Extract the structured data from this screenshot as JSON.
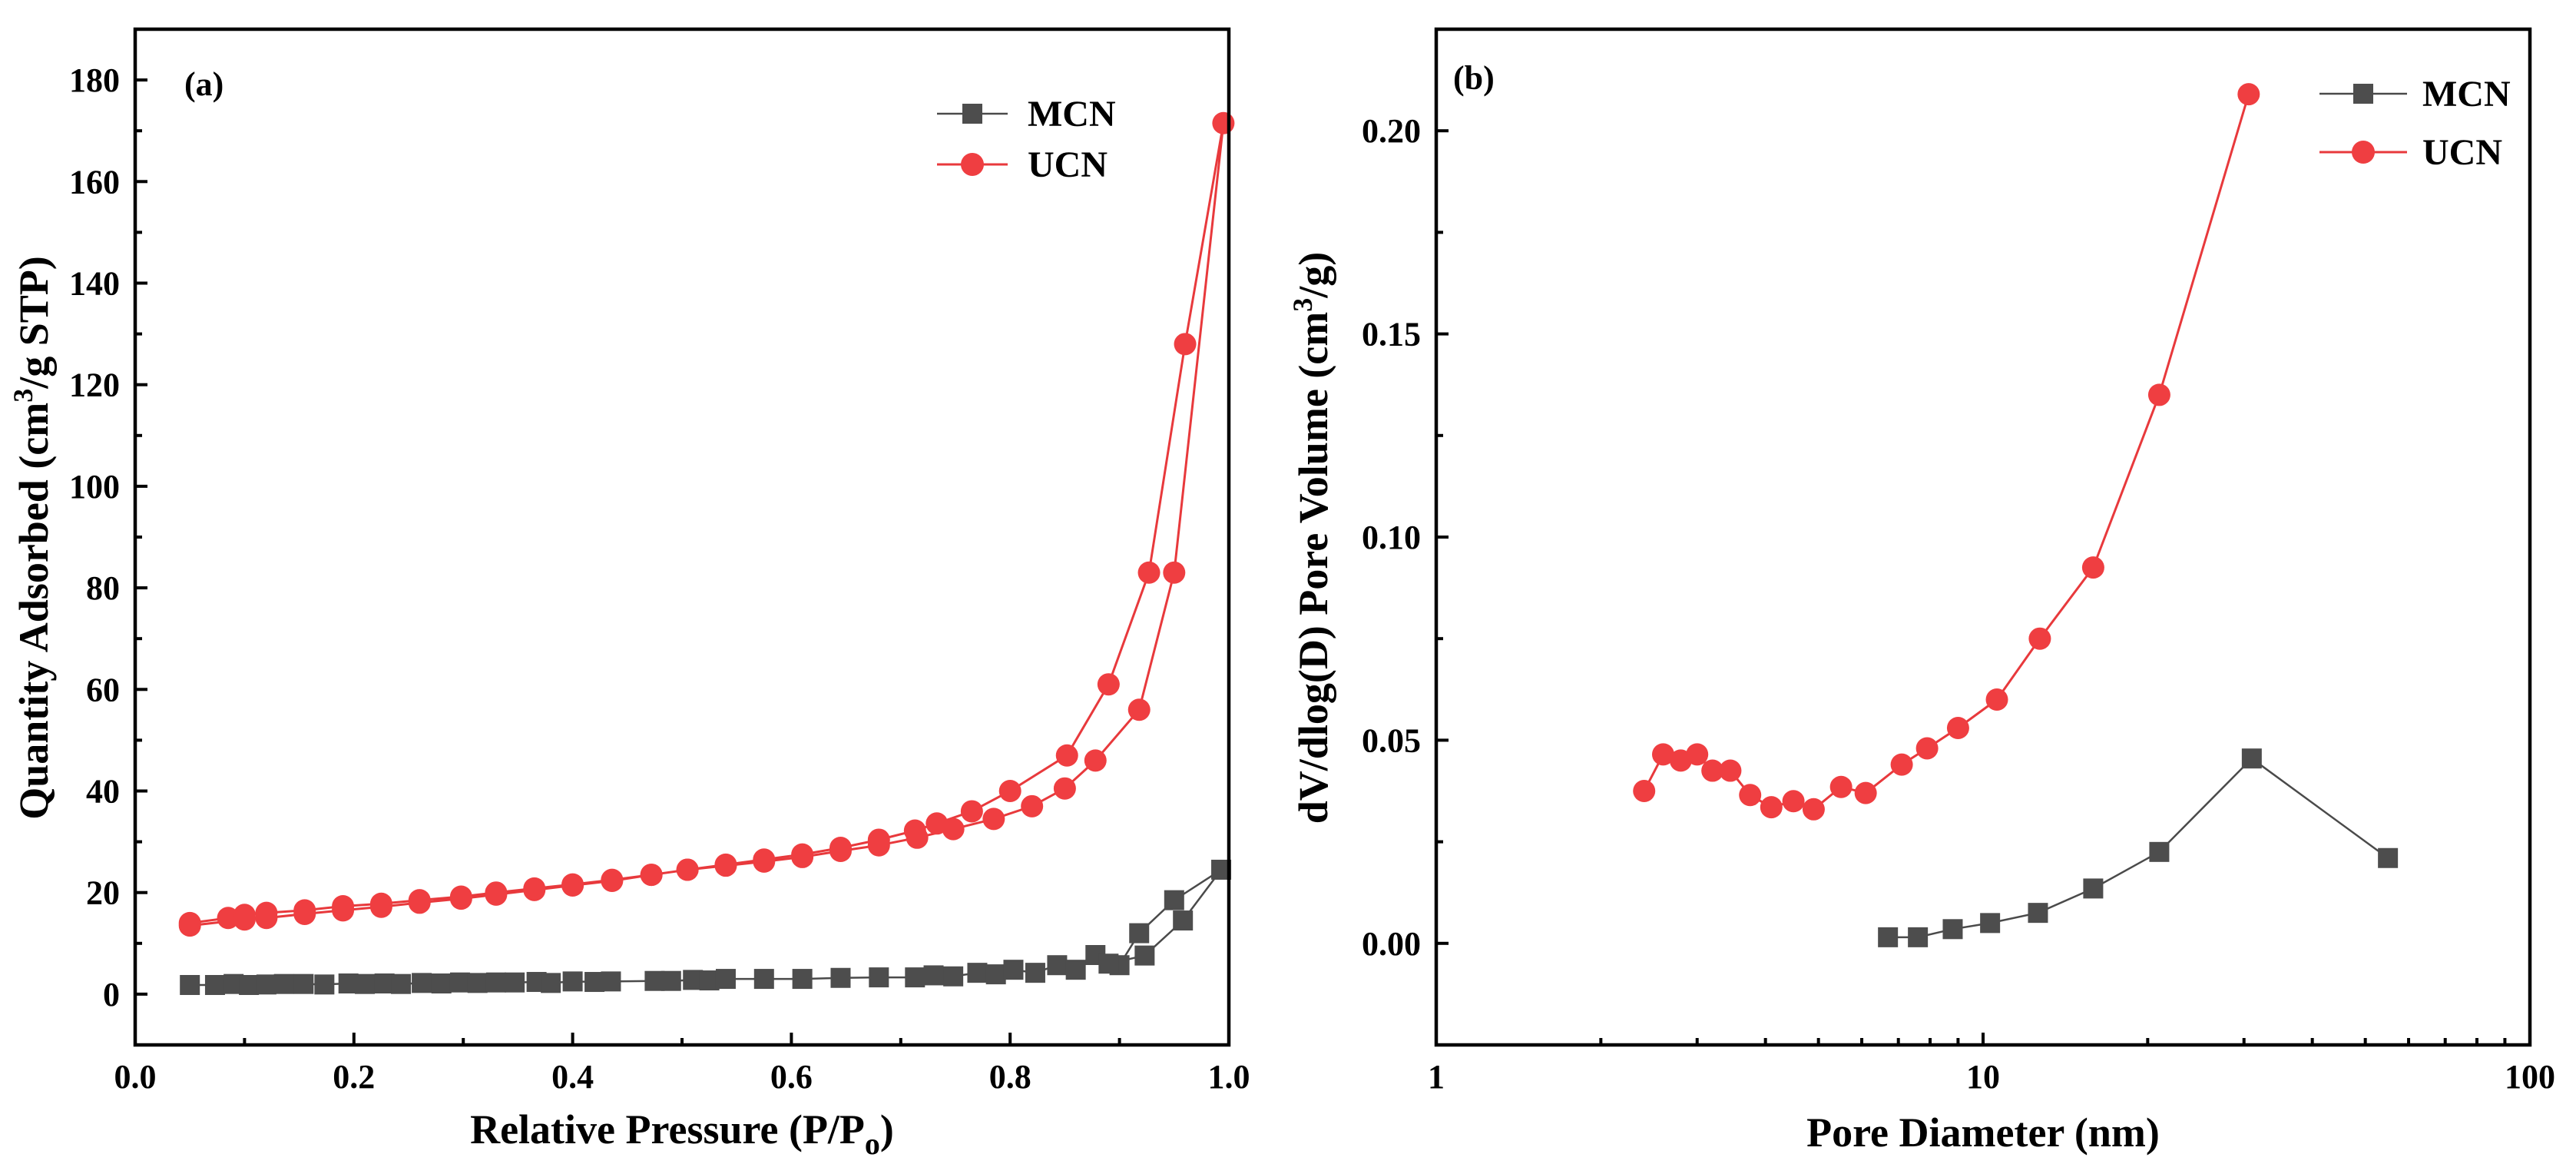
{
  "chart_data": [
    {
      "type": "scatter",
      "panel_label": "(a)",
      "xlabel": "Relative Pressure (P/P",
      "xlabel_sub": "o",
      "xlabel_close": ")",
      "ylabel": "Quantity Adsorbed (cm",
      "ylabel_sup": "3",
      "ylabel_rest": "/g STP)",
      "xlim": [
        0,
        1.0
      ],
      "ylim": [
        -10,
        190
      ],
      "xticks": [
        0.0,
        0.2,
        0.4,
        0.6,
        0.8,
        1.0
      ],
      "xtick_labels": [
        "0.0",
        "0.2",
        "0.4",
        "0.6",
        "0.8",
        "1.0"
      ],
      "yticks": [
        0,
        20,
        40,
        60,
        80,
        100,
        120,
        140,
        160,
        180
      ],
      "ytick_labels": [
        "0",
        "20",
        "40",
        "60",
        "80",
        "100",
        "120",
        "140",
        "160",
        "180"
      ],
      "legend_position": "top-right",
      "series": [
        {
          "name": "MCN",
          "marker": "square",
          "color": "#4d4d4d",
          "x": [
            0.05,
            0.073,
            0.09,
            0.104,
            0.12,
            0.136,
            0.154,
            0.173,
            0.195,
            0.21,
            0.228,
            0.243,
            0.262,
            0.28,
            0.297,
            0.313,
            0.33,
            0.347,
            0.367,
            0.38,
            0.4,
            0.42,
            0.435,
            0.475,
            0.49,
            0.51,
            0.525,
            0.54,
            0.575,
            0.61,
            0.645,
            0.68,
            0.713,
            0.73,
            0.748,
            0.77,
            0.787,
            0.803,
            0.823,
            0.843,
            0.86,
            0.878,
            0.9,
            0.918,
            0.95,
            0.993,
            0.958,
            0.923,
            0.89
          ],
          "y": [
            1.8,
            1.8,
            2.0,
            1.8,
            1.9,
            2.0,
            2.0,
            1.9,
            2.1,
            2.0,
            2.1,
            2.0,
            2.2,
            2.1,
            2.3,
            2.2,
            2.3,
            2.3,
            2.4,
            2.2,
            2.5,
            2.4,
            2.5,
            2.6,
            2.6,
            2.8,
            2.7,
            3.0,
            3.0,
            3.0,
            3.2,
            3.3,
            3.3,
            3.7,
            3.5,
            4.2,
            3.9,
            4.8,
            4.2,
            5.7,
            4.8,
            7.7,
            5.7,
            12.0,
            18.5,
            24.5,
            14.5,
            7.6,
            6.0
          ]
        },
        {
          "name": "UCN",
          "marker": "circle",
          "color": "#ef3e41",
          "x": [
            0.05,
            0.085,
            0.1,
            0.12,
            0.155,
            0.19,
            0.225,
            0.26,
            0.298,
            0.33,
            0.365,
            0.4,
            0.436,
            0.472,
            0.505,
            0.54,
            0.575,
            0.61,
            0.645,
            0.68,
            0.713,
            0.733,
            0.765,
            0.8,
            0.852,
            0.89,
            0.927,
            0.96,
            0.995,
            0.95,
            0.918,
            0.878,
            0.85,
            0.82,
            0.785,
            0.748,
            0.715,
            0.68,
            0.645,
            0.61,
            0.575,
            0.54,
            0.505,
            0.472,
            0.436,
            0.4,
            0.365,
            0.33,
            0.298,
            0.26,
            0.225,
            0.19,
            0.155,
            0.12,
            0.1,
            0.05
          ],
          "y": [
            14.0,
            15.0,
            15.6,
            16.0,
            16.5,
            17.3,
            17.8,
            18.5,
            19.2,
            20.0,
            20.8,
            21.6,
            22.5,
            23.5,
            24.5,
            25.5,
            26.5,
            27.5,
            28.8,
            30.4,
            32.2,
            33.6,
            36.0,
            40.0,
            47.0,
            61.0,
            83.0,
            128.0,
            171.5,
            83.0,
            56.0,
            46.0,
            40.5,
            37.0,
            34.5,
            32.5,
            30.8,
            29.3,
            28.2,
            27.0,
            26.1,
            25.3,
            24.5,
            23.5,
            22.3,
            21.4,
            20.5,
            19.6,
            18.8,
            18.0,
            17.2,
            16.5,
            15.8,
            15.0,
            14.7,
            13.5
          ]
        }
      ],
      "legend": [
        "MCN",
        "UCN"
      ]
    },
    {
      "type": "line",
      "panel_label": "(b)",
      "xscale": "log",
      "xlabel": "Pore Diameter (nm)",
      "ylabel": "dV/dlog(D) Pore Volume (cm",
      "ylabel_sup": "3",
      "ylabel_rest": "/g)",
      "xlim": [
        1,
        100
      ],
      "ylim": [
        -0.025,
        0.225
      ],
      "xticks": [
        1,
        10,
        100
      ],
      "xtick_labels": [
        "1",
        "10",
        "100"
      ],
      "yticks": [
        0.0,
        0.05,
        0.1,
        0.15,
        0.2
      ],
      "ytick_labels": [
        "0.00",
        "0.05",
        "0.10",
        "0.15",
        "0.20"
      ],
      "legend_position": "top-right",
      "series": [
        {
          "name": "MCN",
          "marker": "square",
          "color": "#4d4d4d",
          "x": [
            6.7,
            7.6,
            8.8,
            10.3,
            12.6,
            15.9,
            21.0,
            31.0,
            55.0
          ],
          "y": [
            0.0015,
            0.0015,
            0.0035,
            0.005,
            0.0075,
            0.0135,
            0.0225,
            0.0455,
            0.021
          ]
        },
        {
          "name": "UCN",
          "marker": "circle",
          "color": "#ef3e41",
          "x": [
            2.4,
            2.6,
            2.8,
            3.0,
            3.2,
            3.45,
            3.75,
            4.1,
            4.5,
            4.9,
            5.5,
            6.1,
            7.1,
            7.9,
            9.0,
            10.6,
            12.7,
            15.9,
            21.0,
            30.6
          ],
          "y": [
            0.0375,
            0.0465,
            0.045,
            0.0465,
            0.0425,
            0.0425,
            0.0365,
            0.0335,
            0.035,
            0.033,
            0.0385,
            0.037,
            0.044,
            0.048,
            0.053,
            0.06,
            0.075,
            0.0925,
            0.135,
            0.209
          ]
        }
      ],
      "legend": [
        "MCN",
        "UCN"
      ]
    }
  ]
}
